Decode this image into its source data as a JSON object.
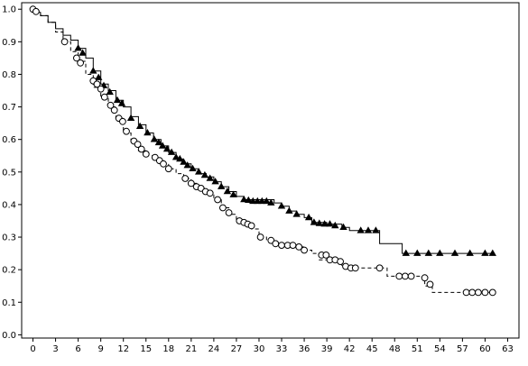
{
  "chart_data": {
    "type": "line",
    "title": "",
    "xlabel": "",
    "ylabel": "",
    "xlim": [
      -1.5,
      64.5
    ],
    "ylim": [
      -0.01,
      1.02
    ],
    "x_ticks": [
      0,
      3,
      6,
      9,
      12,
      15,
      18,
      21,
      24,
      27,
      30,
      33,
      36,
      39,
      42,
      45,
      48,
      51,
      54,
      57,
      60,
      63
    ],
    "x_tick_labels": [
      "0",
      "3",
      "6",
      "9",
      "12",
      "15",
      "18",
      "21",
      "24",
      "27",
      "30",
      "33",
      "36",
      "39",
      "42",
      "45",
      "48",
      "51",
      "54",
      "57",
      "60",
      "63"
    ],
    "y_ticks": [
      0.0,
      0.1,
      0.2,
      0.3,
      0.4,
      0.5,
      0.6,
      0.7,
      0.8,
      0.9,
      1.0
    ],
    "y_tick_labels": [
      "0.0",
      "0.1",
      "0.2",
      "0.3",
      "0.4",
      "0.5",
      "0.6",
      "0.7",
      "0.8",
      "0.9",
      "1.0"
    ],
    "grid": false,
    "legend": "none",
    "series": [
      {
        "line_style": "solid",
        "marker": "filled-triangle",
        "color": "#000000",
        "steps": [
          [
            0,
            1.0
          ],
          [
            0.5,
            0.99
          ],
          [
            1,
            0.98
          ],
          [
            2,
            0.96
          ],
          [
            3,
            0.94
          ],
          [
            4,
            0.92
          ],
          [
            5,
            0.905
          ],
          [
            6,
            0.88
          ],
          [
            7,
            0.85
          ],
          [
            8,
            0.81
          ],
          [
            9,
            0.77
          ],
          [
            10,
            0.75
          ],
          [
            11,
            0.72
          ],
          [
            12,
            0.7
          ],
          [
            13,
            0.67
          ],
          [
            14,
            0.645
          ],
          [
            15,
            0.62
          ],
          [
            16,
            0.6
          ],
          [
            17,
            0.58
          ],
          [
            18,
            0.56
          ],
          [
            19,
            0.54
          ],
          [
            20,
            0.525
          ],
          [
            21,
            0.51
          ],
          [
            22,
            0.495
          ],
          [
            23,
            0.485
          ],
          [
            24,
            0.47
          ],
          [
            25,
            0.455
          ],
          [
            26,
            0.44
          ],
          [
            27,
            0.425
          ],
          [
            28,
            0.415
          ],
          [
            32,
            0.405
          ],
          [
            33,
            0.395
          ],
          [
            34,
            0.38
          ],
          [
            35,
            0.37
          ],
          [
            36,
            0.36
          ],
          [
            37,
            0.345
          ],
          [
            39,
            0.34
          ],
          [
            41,
            0.33
          ],
          [
            42,
            0.32
          ],
          [
            46,
            0.28
          ],
          [
            49,
            0.25
          ],
          [
            61,
            0.25
          ]
        ],
        "censor_marks": [
          [
            6,
            0.88
          ],
          [
            6.6,
            0.865
          ],
          [
            8,
            0.81
          ],
          [
            8.7,
            0.79
          ],
          [
            9.4,
            0.765
          ],
          [
            10.2,
            0.745
          ],
          [
            11.2,
            0.72
          ],
          [
            11.8,
            0.71
          ],
          [
            13,
            0.665
          ],
          [
            14.2,
            0.64
          ],
          [
            15.2,
            0.62
          ],
          [
            16.1,
            0.6
          ],
          [
            16.7,
            0.59
          ],
          [
            17.2,
            0.58
          ],
          [
            17.8,
            0.57
          ],
          [
            18.4,
            0.56
          ],
          [
            19.0,
            0.545
          ],
          [
            19.5,
            0.54
          ],
          [
            20.0,
            0.53
          ],
          [
            20.5,
            0.52
          ],
          [
            21.2,
            0.51
          ],
          [
            22.0,
            0.5
          ],
          [
            22.8,
            0.49
          ],
          [
            23.5,
            0.48
          ],
          [
            24.2,
            0.47
          ],
          [
            25.0,
            0.455
          ],
          [
            25.8,
            0.44
          ],
          [
            26.6,
            0.43
          ],
          [
            28.0,
            0.415
          ],
          [
            28.6,
            0.413
          ],
          [
            29.2,
            0.41
          ],
          [
            29.8,
            0.41
          ],
          [
            30.4,
            0.41
          ],
          [
            31.0,
            0.41
          ],
          [
            31.6,
            0.405
          ],
          [
            33.0,
            0.395
          ],
          [
            34.0,
            0.38
          ],
          [
            35.0,
            0.37
          ],
          [
            36.6,
            0.36
          ],
          [
            37.3,
            0.345
          ],
          [
            38.0,
            0.342
          ],
          [
            38.7,
            0.34
          ],
          [
            39.4,
            0.34
          ],
          [
            40.1,
            0.335
          ],
          [
            41.2,
            0.33
          ],
          [
            43.5,
            0.32
          ],
          [
            44.5,
            0.32
          ],
          [
            45.5,
            0.32
          ],
          [
            49.5,
            0.25
          ],
          [
            51,
            0.25
          ],
          [
            52.5,
            0.25
          ],
          [
            54,
            0.25
          ],
          [
            56,
            0.25
          ],
          [
            58,
            0.25
          ],
          [
            60,
            0.25
          ],
          [
            61,
            0.25
          ]
        ]
      },
      {
        "line_style": "dashed",
        "marker": "open-circle",
        "color": "#000000",
        "steps": [
          [
            0,
            1.0
          ],
          [
            0.5,
            0.99
          ],
          [
            1,
            0.98
          ],
          [
            2,
            0.96
          ],
          [
            3,
            0.93
          ],
          [
            4,
            0.9
          ],
          [
            5,
            0.87
          ],
          [
            6,
            0.84
          ],
          [
            7,
            0.8
          ],
          [
            8,
            0.76
          ],
          [
            9,
            0.73
          ],
          [
            10,
            0.7
          ],
          [
            11,
            0.665
          ],
          [
            12,
            0.62
          ],
          [
            13,
            0.59
          ],
          [
            14,
            0.565
          ],
          [
            15,
            0.55
          ],
          [
            16,
            0.54
          ],
          [
            17,
            0.525
          ],
          [
            18,
            0.51
          ],
          [
            19,
            0.495
          ],
          [
            20,
            0.48
          ],
          [
            21,
            0.465
          ],
          [
            22,
            0.45
          ],
          [
            23,
            0.435
          ],
          [
            24,
            0.415
          ],
          [
            25,
            0.39
          ],
          [
            26,
            0.37
          ],
          [
            27,
            0.35
          ],
          [
            28,
            0.34
          ],
          [
            29,
            0.325
          ],
          [
            30,
            0.3
          ],
          [
            31,
            0.29
          ],
          [
            32,
            0.28
          ],
          [
            35,
            0.27
          ],
          [
            36,
            0.26
          ],
          [
            37,
            0.25
          ],
          [
            38,
            0.23
          ],
          [
            41,
            0.21
          ],
          [
            42,
            0.205
          ],
          [
            47,
            0.18
          ],
          [
            52,
            0.15
          ],
          [
            53,
            0.13
          ],
          [
            61,
            0.13
          ]
        ],
        "censor_marks": [
          [
            0,
            1.0
          ],
          [
            0.4,
            0.993
          ],
          [
            4.2,
            0.9
          ],
          [
            5.8,
            0.85
          ],
          [
            6.3,
            0.835
          ],
          [
            8.0,
            0.78
          ],
          [
            8.5,
            0.77
          ],
          [
            9.0,
            0.755
          ],
          [
            9.5,
            0.73
          ],
          [
            10.3,
            0.705
          ],
          [
            10.8,
            0.69
          ],
          [
            11.4,
            0.665
          ],
          [
            11.9,
            0.655
          ],
          [
            12.4,
            0.625
          ],
          [
            13.4,
            0.595
          ],
          [
            13.9,
            0.585
          ],
          [
            14.4,
            0.57
          ],
          [
            15.0,
            0.555
          ],
          [
            16.2,
            0.545
          ],
          [
            16.8,
            0.535
          ],
          [
            17.3,
            0.525
          ],
          [
            18.0,
            0.51
          ],
          [
            20.2,
            0.48
          ],
          [
            21.0,
            0.465
          ],
          [
            21.7,
            0.455
          ],
          [
            22.3,
            0.45
          ],
          [
            22.9,
            0.44
          ],
          [
            23.5,
            0.435
          ],
          [
            24.5,
            0.415
          ],
          [
            25.2,
            0.39
          ],
          [
            26.0,
            0.375
          ],
          [
            27.4,
            0.35
          ],
          [
            28.0,
            0.345
          ],
          [
            28.5,
            0.34
          ],
          [
            29.0,
            0.335
          ],
          [
            30.2,
            0.3
          ],
          [
            31.6,
            0.29
          ],
          [
            32.2,
            0.28
          ],
          [
            33.0,
            0.275
          ],
          [
            33.8,
            0.275
          ],
          [
            34.5,
            0.275
          ],
          [
            35.3,
            0.27
          ],
          [
            36.0,
            0.26
          ],
          [
            38.3,
            0.245
          ],
          [
            38.9,
            0.245
          ],
          [
            39.4,
            0.23
          ],
          [
            40.1,
            0.23
          ],
          [
            40.8,
            0.225
          ],
          [
            41.5,
            0.21
          ],
          [
            42.2,
            0.205
          ],
          [
            42.8,
            0.205
          ],
          [
            46.0,
            0.205
          ],
          [
            48.6,
            0.18
          ],
          [
            49.4,
            0.18
          ],
          [
            50.2,
            0.18
          ],
          [
            52.0,
            0.175
          ],
          [
            52.7,
            0.155
          ],
          [
            57.5,
            0.13
          ],
          [
            58.3,
            0.13
          ],
          [
            59.1,
            0.13
          ],
          [
            60.0,
            0.13
          ],
          [
            61.0,
            0.13
          ]
        ]
      }
    ]
  }
}
